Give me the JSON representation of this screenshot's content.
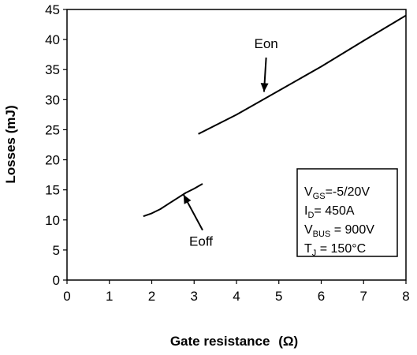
{
  "chart_data": {
    "type": "line",
    "title": "",
    "xlabel": "Gate resistance",
    "xlabel_unit": "(Ω)",
    "ylabel": "Losses (mJ)",
    "xlim": [
      0,
      8
    ],
    "ylim": [
      0,
      45
    ],
    "x_ticks": [
      "0",
      "1",
      "2",
      "3",
      "4",
      "5",
      "6",
      "7",
      "8"
    ],
    "y_ticks": [
      "0",
      "5",
      "10",
      "15",
      "20",
      "25",
      "30",
      "35",
      "40",
      "45"
    ],
    "grid": false,
    "series": [
      {
        "name": "Eon",
        "x": [
          3.1,
          4.0,
          5.0,
          6.0,
          7.0,
          8.0
        ],
        "y": [
          24.3,
          27.5,
          31.5,
          35.5,
          39.8,
          44.0
        ]
      },
      {
        "name": "Eoff",
        "x": [
          1.8,
          2.0,
          2.2,
          2.4,
          2.6,
          2.8,
          3.0,
          3.2
        ],
        "y": [
          10.6,
          11.1,
          11.8,
          12.7,
          13.6,
          14.5,
          15.2,
          16.0
        ]
      }
    ],
    "annotations": [
      {
        "text": "Eon",
        "arrow_from": [
          4.7,
          37.0
        ],
        "arrow_to": [
          4.65,
          31.3
        ]
      },
      {
        "text": "Eoff",
        "arrow_from": [
          3.2,
          8.3
        ],
        "arrow_to": [
          2.75,
          14.2
        ]
      }
    ],
    "conditions_box": {
      "position": "bottom-right",
      "lines": [
        {
          "main": "V",
          "sub": "GS",
          "rest": "=-5/20V"
        },
        {
          "main": "I",
          "sub": "D",
          "rest": "= 450A"
        },
        {
          "main": "V",
          "sub": "BUS",
          "rest": " = 900V"
        },
        {
          "main": "T",
          "sub": "J",
          "rest": " = 150°C"
        }
      ]
    }
  }
}
